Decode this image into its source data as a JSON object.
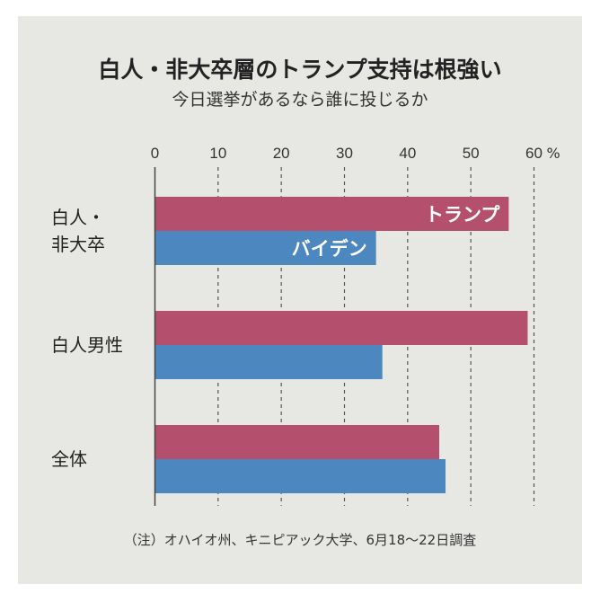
{
  "chart_data": {
    "type": "bar",
    "orientation": "horizontal",
    "title": "白人・非大卒層のトランプ支持は根強い",
    "subtitle": "今日選挙があるなら誰に投じるか",
    "categories": [
      "白人・\n非大卒",
      "白人男性",
      "全体"
    ],
    "series": [
      {
        "name": "トランプ",
        "color": "#b4506e",
        "values": [
          56,
          59,
          45
        ]
      },
      {
        "name": "バイデン",
        "color": "#4d87c0",
        "values": [
          35,
          36,
          46
        ]
      }
    ],
    "xlim": [
      0,
      60
    ],
    "xticks": [
      0,
      10,
      20,
      30,
      40,
      50,
      60
    ],
    "xunit": "%",
    "grid": "vertical dashed",
    "legend": "inline labels on first group bars",
    "note": "（注）オハイオ州、キニピアック大学、6月18〜22日調査"
  }
}
